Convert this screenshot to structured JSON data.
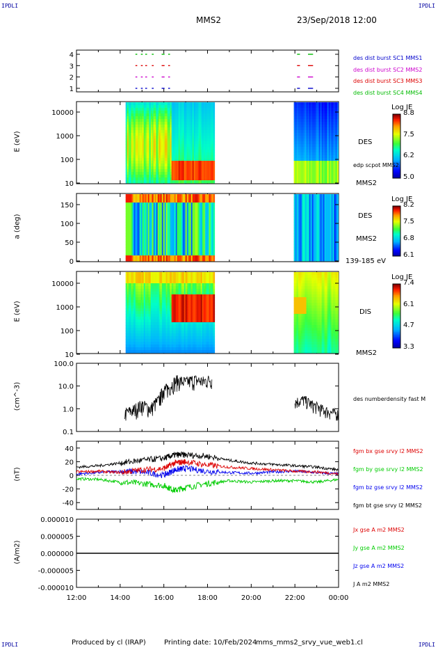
{
  "header": {
    "corner_tl": "IPDLI",
    "corner_tr": "IPDLI",
    "corner_bl": "IPDLI",
    "corner_br": "IPDLI",
    "spacecraft": "MMS2",
    "datetime": "23/Sep/2018 12:00"
  },
  "footer": {
    "produced": "Produced by cl (IRAP)",
    "printing": "Printing date: 10/Feb/2024",
    "file": "mms_mms2_srvy_vue_web1.cl"
  },
  "colors": {
    "mms1": "#0000cc",
    "mms2": "#cc00cc",
    "mms3": "#dd0000",
    "mms4": "#00bb00",
    "bx": "#dd0000",
    "by": "#00cc00",
    "bz": "#0000ee",
    "bt": "#000000"
  },
  "chart_data": [
    {
      "type": "scatter",
      "panel": "burst-availability",
      "yticks": [
        "4",
        "3",
        "2",
        "1"
      ],
      "series": [
        {
          "name": "des dist burst SC1 MMS1",
          "level": 1
        },
        {
          "name": "des dist burst SC2 MMS2",
          "level": 2
        },
        {
          "name": "des dist burst SC3 MMS3",
          "level": 3
        },
        {
          "name": "des dist burst SC4 MMS4",
          "level": 4
        }
      ],
      "burst_intervals_h": [
        [
          14.7,
          14.75
        ],
        [
          14.95,
          15.0
        ],
        [
          15.15,
          15.2
        ],
        [
          15.45,
          15.5
        ],
        [
          15.9,
          16.0
        ],
        [
          16.2,
          16.25
        ],
        [
          22.1,
          22.2
        ],
        [
          22.6,
          22.8
        ]
      ]
    },
    {
      "type": "heatmap",
      "panel": "des-energy",
      "ylabel": "E (eV)",
      "yscale": "log",
      "ylim": [
        10,
        30000
      ],
      "yticks": [
        "10000",
        "1000",
        "100",
        "10"
      ],
      "label_main": "DES",
      "label_sub": "MMS2",
      "overlay_label": "edp scpot MMS2",
      "colorbar": {
        "title": "Log JE",
        "ticks": [
          "8.8",
          "7.5",
          "6.2",
          "5.0"
        ]
      }
    },
    {
      "type": "heatmap",
      "panel": "des-pitch",
      "ylabel": "a (deg)",
      "ylim": [
        0,
        180
      ],
      "yticks": [
        "150",
        "100",
        "50",
        "0"
      ],
      "label_main": "DES",
      "label_sub": "MMS2",
      "label_energy": "139-185 eV",
      "colorbar": {
        "title": "Log JE",
        "ticks": [
          "8.2",
          "7.5",
          "6.8",
          "6.1"
        ]
      }
    },
    {
      "type": "heatmap",
      "panel": "dis-energy",
      "ylabel": "E (eV)",
      "yscale": "log",
      "ylim": [
        10,
        30000
      ],
      "yticks": [
        "10000",
        "1000",
        "100",
        "10"
      ],
      "label_main": "DIS",
      "label_sub": "MMS2",
      "colorbar": {
        "title": "Log JE",
        "ticks": [
          "7.4",
          "6.1",
          "4.7",
          "3.3"
        ]
      }
    },
    {
      "type": "line",
      "panel": "density",
      "ylabel": "(cm^-3)",
      "yscale": "log",
      "ylim": [
        0.1,
        100
      ],
      "yticks": [
        "100.0",
        "10.0",
        "1.0",
        "0.1"
      ],
      "series": [
        {
          "name": "des numberdensity fast M",
          "x": [
            14.2,
            14.6,
            15.0,
            15.4,
            15.8,
            16.0,
            16.2,
            16.6,
            17.0,
            17.4,
            17.8,
            18.2,
            22.0,
            22.4,
            22.8,
            23.2,
            23.6,
            24.0
          ],
          "y": [
            0.6,
            0.9,
            1.5,
            1.0,
            2.5,
            7.0,
            8.0,
            18,
            15,
            19,
            16,
            20,
            2.0,
            2.5,
            1.5,
            1.0,
            0.7,
            0.6
          ]
        }
      ]
    },
    {
      "type": "line",
      "panel": "magnetic-field",
      "ylabel": "(nT)",
      "ylim": [
        -50,
        50
      ],
      "yticks": [
        "40",
        "20",
        "0",
        "-20",
        "-40"
      ],
      "x": [
        12,
        13,
        14,
        15,
        16,
        16.5,
        17,
        18,
        19,
        20,
        21,
        22,
        23,
        24
      ],
      "series": [
        {
          "name": "fgm bx gse srvy l2 MMS2",
          "y": [
            5,
            6,
            4,
            8,
            10,
            18,
            20,
            15,
            12,
            10,
            8,
            6,
            5,
            2
          ]
        },
        {
          "name": "fgm by gse srvy l2 MMS2",
          "y": [
            -5,
            -6,
            -10,
            -12,
            -15,
            -22,
            -18,
            -12,
            -8,
            -10,
            -8,
            -8,
            -10,
            -6
          ]
        },
        {
          "name": "fgm bz gse srvy l2 MMS2",
          "y": [
            2,
            4,
            6,
            5,
            0,
            8,
            10,
            6,
            4,
            3,
            5,
            6,
            4,
            2
          ]
        },
        {
          "name": "fgm bt gse srvy l2 MMS2",
          "y": [
            12,
            14,
            18,
            22,
            25,
            30,
            30,
            28,
            22,
            18,
            16,
            14,
            12,
            8
          ]
        }
      ]
    },
    {
      "type": "line",
      "panel": "current-density",
      "ylabel": "(A/m2)",
      "ylim": [
        -1e-05,
        1e-05
      ],
      "yticks": [
        "0.000010",
        "0.000005",
        "0.000000",
        "-0.000005",
        "-0.000010"
      ],
      "series": [
        {
          "name": "Jx gse A m2 MMS2",
          "y": 0
        },
        {
          "name": "Jy gse A m2 MMS2",
          "y": 0
        },
        {
          "name": "Jz gse A m2 MMS2",
          "y": 0
        },
        {
          "name": "J A m2 MMS2",
          "y": 0
        }
      ]
    }
  ],
  "xaxis": {
    "ticks": [
      "12:00",
      "14:00",
      "16:00",
      "18:00",
      "20:00",
      "22:00",
      "00:00"
    ],
    "range_h": [
      12,
      24
    ],
    "data_gaps_h": [
      [
        18.3,
        22.0
      ]
    ]
  }
}
